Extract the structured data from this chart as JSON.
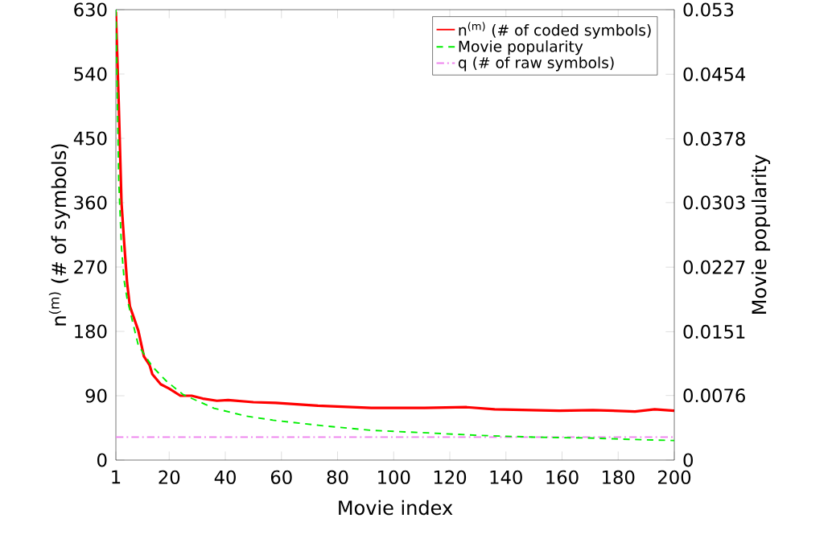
{
  "chart_data": {
    "type": "line",
    "xlabel": "Movie index",
    "ylabel": "n$^{(m)}$ (# of symbols)",
    "y2label": "Movie popularity",
    "xlim": [
      1,
      200
    ],
    "xticks": [
      1,
      20,
      40,
      60,
      80,
      100,
      120,
      140,
      160,
      180,
      200
    ],
    "ylim": [
      0,
      630
    ],
    "yticks": [
      0,
      90,
      180,
      270,
      360,
      450,
      540,
      630
    ],
    "y2lim": [
      0,
      0.053
    ],
    "y2ticks": [
      0,
      0.0076,
      0.0151,
      0.0227,
      0.0303,
      0.0378,
      0.0454,
      0.053
    ],
    "legend": "top right",
    "grid": false,
    "marker": "none",
    "series": [
      {
        "name": "n$^{(m)}$ (# of coded symbols)",
        "color": "#ff0000",
        "line_style": "solid",
        "x": [
          1,
          2,
          3,
          4,
          5,
          6,
          9,
          11,
          13,
          14,
          17,
          20,
          24,
          28,
          32,
          37,
          41,
          50,
          58,
          73,
          92,
          111,
          126,
          136,
          159,
          171,
          186,
          193,
          200
        ],
        "values": [
          627,
          502,
          360,
          302,
          248,
          215,
          181,
          145,
          133,
          120,
          106,
          100,
          90,
          90,
          86,
          83,
          84,
          81,
          80,
          76,
          73,
          73,
          74,
          71,
          69,
          70,
          68,
          71,
          69
        ]
      },
      {
        "name": "Movie popularity",
        "color": "#00ee00",
        "line_style": "dashed",
        "axis": "y2",
        "x": [
          1,
          2,
          3,
          4,
          5,
          7,
          9,
          14,
          19,
          25,
          36,
          47,
          57,
          73,
          92,
          112,
          131,
          150,
          169,
          188,
          200
        ],
        "values": [
          0.053,
          0.033,
          0.025,
          0.021,
          0.019,
          0.0162,
          0.0135,
          0.011,
          0.0093,
          0.0077,
          0.0061,
          0.0052,
          0.0047,
          0.0041,
          0.0035,
          0.0032,
          0.0029,
          0.0027,
          0.0026,
          0.0024,
          0.0023
        ]
      },
      {
        "name": "q (# of raw symbols)",
        "color": "#ee82ee",
        "line_style": "dashdotted",
        "x": [
          1,
          200
        ],
        "values": [
          32,
          32
        ]
      }
    ]
  }
}
